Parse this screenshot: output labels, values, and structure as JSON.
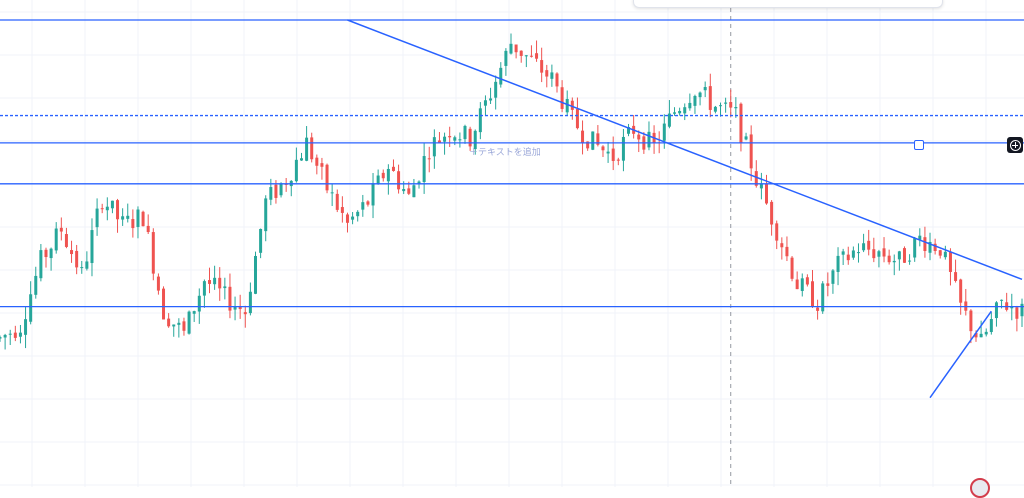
{
  "annotations": {
    "add_text_label": "＋テキストを追加"
  },
  "colors": {
    "up": "#26a69a",
    "down": "#ef5350",
    "drawing": "#2962ff",
    "grid": "#f0f3fa",
    "crosshair": "#9598a1",
    "button_bg": "#131722"
  },
  "icons": {
    "plus_button": "plus-circle-icon",
    "line_handle": "square-handle-icon",
    "corner_badge": "logo-badge-icon"
  },
  "chart_data": {
    "type": "candlestick",
    "title": "",
    "xlabel": "",
    "ylabel": "",
    "ylim": [
      0,
      100
    ],
    "xlim": [
      0,
      200
    ],
    "grid": true,
    "legend": "none",
    "close_path": [
      [
        0,
        30
      ],
      [
        4,
        33
      ],
      [
        8,
        47
      ],
      [
        12,
        54
      ],
      [
        16,
        44
      ],
      [
        20,
        61
      ],
      [
        24,
        55
      ],
      [
        28,
        57
      ],
      [
        32,
        36
      ],
      [
        36,
        31
      ],
      [
        40,
        43
      ],
      [
        44,
        39
      ],
      [
        48,
        36
      ],
      [
        52,
        60
      ],
      [
        56,
        65
      ],
      [
        60,
        73
      ],
      [
        64,
        63
      ],
      [
        68,
        55
      ],
      [
        72,
        60
      ],
      [
        76,
        68
      ],
      [
        80,
        61
      ],
      [
        84,
        72
      ],
      [
        88,
        76
      ],
      [
        92,
        74
      ],
      [
        96,
        84
      ],
      [
        100,
        95
      ],
      [
        104,
        91
      ],
      [
        108,
        87
      ],
      [
        112,
        78
      ],
      [
        116,
        73
      ],
      [
        120,
        70
      ],
      [
        124,
        76
      ],
      [
        128,
        72
      ],
      [
        132,
        80
      ],
      [
        136,
        85
      ],
      [
        140,
        81
      ],
      [
        144,
        79
      ],
      [
        148,
        65
      ],
      [
        152,
        54
      ],
      [
        156,
        42
      ],
      [
        160,
        38
      ],
      [
        164,
        46
      ],
      [
        168,
        50
      ],
      [
        172,
        49
      ],
      [
        176,
        47
      ],
      [
        180,
        52
      ],
      [
        184,
        50
      ],
      [
        188,
        37
      ],
      [
        192,
        29
      ],
      [
        196,
        38
      ],
      [
        200,
        36
      ]
    ],
    "horizontal_lines": [
      100,
      79,
      73,
      64,
      37
    ],
    "dashed_level": 79,
    "trendline_down": {
      "from": [
        68,
        100
      ],
      "to": [
        200,
        43
      ]
    },
    "trendline_up": {
      "from": [
        182,
        17
      ],
      "to": [
        194,
        36
      ]
    },
    "crosshair_x": 143
  }
}
